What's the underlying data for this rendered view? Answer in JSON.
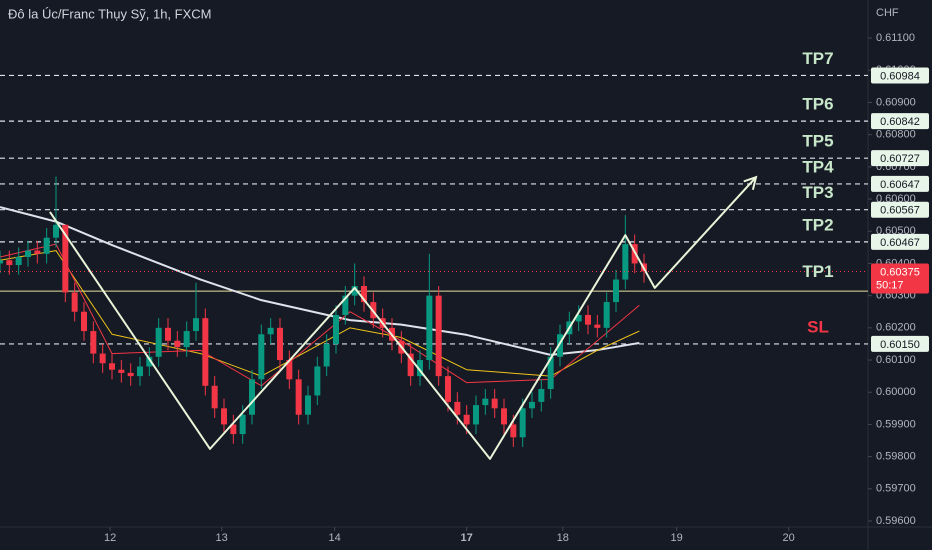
{
  "chart_data": {
    "type": "candlestick",
    "title": "Đô la Úc/Franc Thụy Sỹ, 1h, FXCM",
    "currency": "CHF",
    "up_color": "#089981",
    "down_color": "#f23645",
    "xlim": [
      0,
      186
    ],
    "ylim": [
      0.596,
      0.6115
    ],
    "xticks": [
      {
        "value": 23.6,
        "label": "12"
      },
      {
        "value": 47.5,
        "label": "13"
      },
      {
        "value": 71.7,
        "label": "14"
      },
      {
        "value": 100,
        "label": "17"
      },
      {
        "value": 120.6,
        "label": "18"
      },
      {
        "value": 145,
        "label": "19"
      },
      {
        "value": 169,
        "label": "20"
      }
    ],
    "yticks": [
      {
        "value": 0.596,
        "label": "0.59600"
      },
      {
        "value": 0.597,
        "label": "0.59700"
      },
      {
        "value": 0.598,
        "label": "0.59800"
      },
      {
        "value": 0.599,
        "label": "0.59900"
      },
      {
        "value": 0.6,
        "label": "0.60000"
      },
      {
        "value": 0.601,
        "label": "0.60100"
      },
      {
        "value": 0.602,
        "label": "0.60200"
      },
      {
        "value": 0.603,
        "label": "0.60300"
      },
      {
        "value": 0.604,
        "label": "0.60400"
      },
      {
        "value": 0.605,
        "label": "0.60500"
      },
      {
        "value": 0.606,
        "label": "0.60600"
      },
      {
        "value": 0.607,
        "label": "0.60700"
      },
      {
        "value": 0.608,
        "label": "0.60800"
      },
      {
        "value": 0.609,
        "label": "0.60900"
      },
      {
        "value": 0.61,
        "label": "0.61000"
      },
      {
        "value": 0.611,
        "label": "0.61100"
      }
    ],
    "candles": {
      "x": [
        0,
        2,
        4,
        6,
        8,
        10,
        12,
        14,
        16,
        18,
        20,
        22,
        24,
        26,
        28,
        30,
        32,
        34,
        36,
        38,
        40,
        42,
        44,
        46,
        48,
        50,
        52,
        54,
        56,
        58,
        60,
        62,
        64,
        66,
        68,
        70,
        72,
        74,
        76,
        78,
        80,
        82,
        84,
        86,
        88,
        90,
        92,
        94,
        96,
        98,
        100,
        102,
        104,
        106,
        108,
        110,
        112,
        114,
        116,
        118,
        120,
        122,
        124,
        126,
        128,
        130,
        132,
        134,
        136,
        138
      ],
      "open": [
        0.604,
        0.6041,
        0.60395,
        0.6042,
        0.6044,
        0.6043,
        0.6048,
        0.6052,
        0.6031,
        0.6025,
        0.6019,
        0.6012,
        0.6009,
        0.6007,
        0.6006,
        0.6005,
        0.6008,
        0.6011,
        0.602,
        0.6016,
        0.6014,
        0.6019,
        0.6023,
        0.6002,
        0.5995,
        0.599,
        0.5987,
        0.5993,
        0.6004,
        0.6018,
        0.602,
        0.601,
        0.6004,
        0.5993,
        0.5999,
        0.6008,
        0.6015,
        0.6024,
        0.603,
        0.6033,
        0.6028,
        0.6023,
        0.602,
        0.6016,
        0.6012,
        0.6005,
        0.601,
        0.603,
        0.6005,
        0.5997,
        0.5993,
        0.599,
        0.5996,
        0.5998,
        0.5995,
        0.599,
        0.5986,
        0.5995,
        0.5997,
        0.6001,
        0.6011,
        0.6018,
        0.6022,
        0.6024,
        0.6021,
        0.602,
        0.6028,
        0.6035,
        0.6046,
        0.604
      ],
      "high": [
        0.6044,
        0.6044,
        0.6045,
        0.6047,
        0.6047,
        0.6051,
        0.6067,
        0.6052,
        0.6034,
        0.6028,
        0.6022,
        0.6015,
        0.6012,
        0.601,
        0.6009,
        0.6011,
        0.6014,
        0.6023,
        0.6023,
        0.6019,
        0.6022,
        0.6034,
        0.6026,
        0.6005,
        0.5998,
        0.5993,
        0.5996,
        0.6007,
        0.6021,
        0.6023,
        0.6023,
        0.6013,
        0.6007,
        0.6002,
        0.6011,
        0.6018,
        0.6027,
        0.6033,
        0.604,
        0.6036,
        0.6031,
        0.6026,
        0.6023,
        0.6019,
        0.6015,
        0.6013,
        0.6043,
        0.6033,
        0.6008,
        0.6,
        0.5996,
        0.5999,
        0.6001,
        0.6001,
        0.5998,
        0.5993,
        0.5998,
        0.6,
        0.6004,
        0.6014,
        0.6021,
        0.6025,
        0.6027,
        0.6027,
        0.6024,
        0.6031,
        0.6038,
        0.6055,
        0.6049,
        0.6043
      ],
      "low": [
        0.6037,
        0.60365,
        0.60365,
        0.6039,
        0.604,
        0.604,
        0.6045,
        0.6028,
        0.6022,
        0.6016,
        0.6009,
        0.6006,
        0.6004,
        0.6003,
        0.6002,
        0.6002,
        0.6005,
        0.6008,
        0.6013,
        0.6011,
        0.6011,
        0.6016,
        0.5999,
        0.5992,
        0.5987,
        0.5984,
        0.5984,
        0.599,
        0.6001,
        0.6015,
        0.6007,
        0.6001,
        0.599,
        0.599,
        0.5996,
        0.6005,
        0.6012,
        0.6021,
        0.6027,
        0.6025,
        0.602,
        0.6017,
        0.6013,
        0.6009,
        0.6002,
        0.6002,
        0.6007,
        0.6002,
        0.5994,
        0.599,
        0.5987,
        0.5987,
        0.5993,
        0.5992,
        0.5987,
        0.5983,
        0.5983,
        0.5992,
        0.5994,
        0.5998,
        0.6008,
        0.6015,
        0.6019,
        0.6018,
        0.6017,
        0.6017,
        0.6025,
        0.6032,
        0.6037,
        0.6034
      ],
      "close": [
        0.6041,
        0.60395,
        0.6042,
        0.6044,
        0.6043,
        0.6048,
        0.6052,
        0.6031,
        0.6025,
        0.6019,
        0.6012,
        0.6009,
        0.6007,
        0.6006,
        0.6005,
        0.6008,
        0.6011,
        0.602,
        0.6016,
        0.6014,
        0.6019,
        0.6023,
        0.6002,
        0.5995,
        0.599,
        0.5987,
        0.5993,
        0.6004,
        0.6018,
        0.602,
        0.601,
        0.6004,
        0.5993,
        0.5999,
        0.6008,
        0.6015,
        0.6024,
        0.603,
        0.6033,
        0.6028,
        0.6023,
        0.602,
        0.6016,
        0.6012,
        0.6005,
        0.601,
        0.603,
        0.6005,
        0.5997,
        0.5993,
        0.599,
        0.5996,
        0.5998,
        0.5995,
        0.599,
        0.5986,
        0.5995,
        0.5997,
        0.6001,
        0.6011,
        0.6018,
        0.6022,
        0.6024,
        0.6021,
        0.602,
        0.6028,
        0.6035,
        0.6046,
        0.604,
        0.60375
      ]
    },
    "series": [
      {
        "color": "#e0e3eb",
        "width": 2,
        "x": [
          0,
          12,
          24,
          43,
          56,
          75,
          86,
          100,
          118,
          128,
          137
        ],
        "values": [
          0.60575,
          0.6053,
          0.60457,
          0.6035,
          0.60286,
          0.60224,
          0.6021,
          0.60178,
          0.60116,
          0.60131,
          0.60153
        ]
      },
      {
        "color": "#f0c419",
        "width": 1,
        "x": [
          0,
          12,
          24,
          43,
          56,
          75,
          86,
          100,
          118,
          128,
          137
        ],
        "values": [
          0.6041,
          0.6044,
          0.6018,
          0.6012,
          0.6005,
          0.602,
          0.6017,
          0.6007,
          0.6005,
          0.6013,
          0.6019
        ]
      },
      {
        "color": "#f23645",
        "width": 1,
        "x": [
          0,
          12,
          24,
          43,
          56,
          75,
          86,
          100,
          118,
          128,
          137
        ],
        "values": [
          0.6042,
          0.6046,
          0.6012,
          0.6013,
          0.6002,
          0.6025,
          0.6016,
          0.6003,
          0.6004,
          0.6016,
          0.6027
        ]
      }
    ],
    "drawing": {
      "color": "#e8f5d8",
      "x": [
        10.7,
        45,
        76,
        105,
        134,
        140.3,
        162
      ],
      "y": [
        0.6056,
        0.59824,
        0.60324,
        0.59793,
        0.60488,
        0.60324,
        0.60668
      ]
    },
    "reference_line": {
      "price": 0.60314,
      "color": "#e8e0a0"
    },
    "levels": [
      {
        "name": "TP7",
        "price": 0.60984,
        "color": "#c8e6c9"
      },
      {
        "name": "TP6",
        "price": 0.60842,
        "color": "#c8e6c9"
      },
      {
        "name": "TP5",
        "price": 0.60727,
        "color": "#c8e6c9"
      },
      {
        "name": "TP4",
        "price": 0.60647,
        "color": "#c8e6c9"
      },
      {
        "name": "TP3",
        "price": 0.60567,
        "color": "#c8e6c9"
      },
      {
        "name": "TP2",
        "price": 0.60467,
        "color": "#c8e6c9"
      },
      {
        "name": "SL",
        "price": 0.6015,
        "price_label": "0.60150",
        "color": "#f23645"
      }
    ],
    "current_price": {
      "name": "TP1",
      "price": 0.60375,
      "countdown": "50:17",
      "color": "#f23645"
    }
  }
}
